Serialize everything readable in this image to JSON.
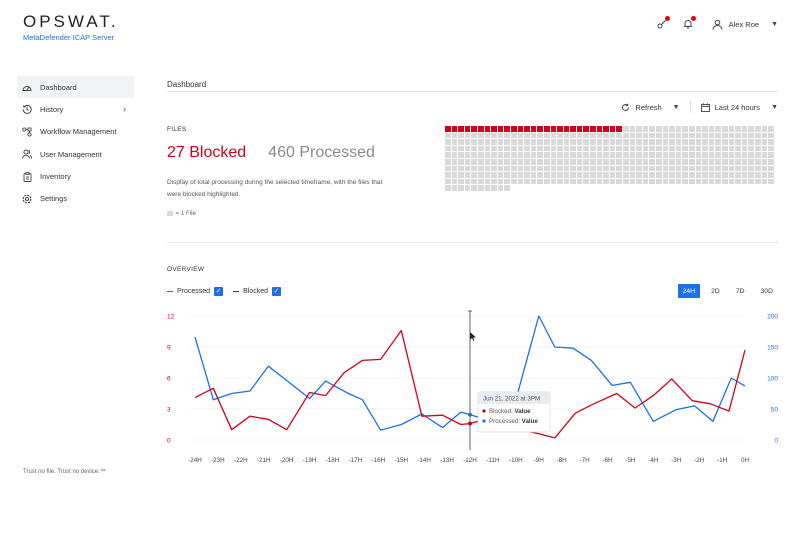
{
  "brand": {
    "logo": "OPSWAT.",
    "product": "MetaDefender ICAP Server"
  },
  "topbar": {
    "user_name": "Alex Roe",
    "icons": [
      "key-icon",
      "bell-icon",
      "user-icon"
    ]
  },
  "sidebar": {
    "items": [
      {
        "label": "Dashboard",
        "icon": "gauge-icon",
        "active": true
      },
      {
        "label": "History",
        "icon": "history-icon",
        "has_children": true
      },
      {
        "label": "Workflow Management",
        "icon": "workflow-icon"
      },
      {
        "label": "User Management",
        "icon": "users-icon"
      },
      {
        "label": "Inventory",
        "icon": "clipboard-icon"
      },
      {
        "label": "Settings",
        "icon": "gear-icon"
      }
    ],
    "footer": "Trust no file. Trust no device.™"
  },
  "page": {
    "title": "Dashboard"
  },
  "toolbar": {
    "refresh_label": "Refresh",
    "timeframe_label": "Last 24 hours"
  },
  "files": {
    "section_label": "FILES",
    "blocked_text": "27 Blocked",
    "processed_text": "460 Processed",
    "blocked_count": 27,
    "processed_count": 460,
    "description": "Display of total processing during the selected timeframe, with the files that were blocked highlighted.",
    "legend": "= 1 File",
    "colors": {
      "blocked": "#d0021b",
      "processed": "#d9d9d9"
    }
  },
  "overview": {
    "section_label": "OVERVIEW",
    "legend": [
      {
        "label": "Processed",
        "color": "#1d6fe8",
        "checked": true
      },
      {
        "label": "Blocked",
        "color": "#d0021b",
        "checked": true
      }
    ],
    "ranges": [
      {
        "label": "24H",
        "active": true
      },
      {
        "label": "2D",
        "active": false
      },
      {
        "label": "7D",
        "active": false
      },
      {
        "label": "30D",
        "active": false
      }
    ],
    "tooltip": {
      "title": "Jun 21, 2022 at 3PM",
      "rows": [
        {
          "label": "Blocked:",
          "value": "Value",
          "color": "#d0021b"
        },
        {
          "label": "Processed:",
          "value": "Value",
          "color": "#1d6fe8"
        }
      ]
    }
  },
  "chart_data": {
    "type": "line",
    "title": "",
    "xlabel": "",
    "ylabel_left": "Blocked",
    "ylabel_right": "Processed",
    "categories": [
      "-24H",
      "-23H",
      "-22H",
      "-21H",
      "-20H",
      "-19H",
      "-18H",
      "-17H",
      "-16H",
      "-15H",
      "-14H",
      "-13H",
      "-12H",
      "-11H",
      "-10H",
      "-9H",
      "-8H",
      "-7H",
      "-6H",
      "-5H",
      "-4H",
      "-3H",
      "-2H",
      "-1H",
      "0H"
    ],
    "y_left_ticks": [
      0,
      3,
      6,
      9,
      12
    ],
    "y_right_ticks": [
      0,
      50,
      100,
      150,
      200
    ],
    "ylim_left": [
      0,
      12
    ],
    "ylim_right": [
      0,
      200
    ],
    "grid": true,
    "series": [
      {
        "name": "Processed",
        "axis": "right",
        "color": "#1d6fe8",
        "points": [
          [
            -24,
            166
          ],
          [
            -23.2,
            65
          ],
          [
            -22.4,
            75
          ],
          [
            -21.6,
            79
          ],
          [
            -20.8,
            119
          ],
          [
            -20,
            96
          ],
          [
            -19,
            67
          ],
          [
            -18.3,
            95
          ],
          [
            -17.3,
            75
          ],
          [
            -16.7,
            65
          ],
          [
            -15.9,
            16
          ],
          [
            -15,
            25
          ],
          [
            -14.1,
            42
          ],
          [
            -13.2,
            20
          ],
          [
            -12.4,
            45
          ],
          [
            -12,
            41
          ],
          [
            -11.5,
            35
          ],
          [
            -10.6,
            38
          ],
          [
            -9.9,
            78
          ],
          [
            -9,
            200
          ],
          [
            -8.3,
            150
          ],
          [
            -7.5,
            148
          ],
          [
            -6.7,
            128
          ],
          [
            -5.8,
            88
          ],
          [
            -5,
            93
          ],
          [
            -4,
            30
          ],
          [
            -3,
            49
          ],
          [
            -2.2,
            55
          ],
          [
            -1.4,
            30
          ],
          [
            -0.6,
            100
          ],
          [
            0,
            87
          ]
        ]
      },
      {
        "name": "Blocked",
        "axis": "left",
        "color": "#d0021b",
        "points": [
          [
            -24,
            4.1
          ],
          [
            -23.2,
            5
          ],
          [
            -22.4,
            1
          ],
          [
            -21.6,
            2.3
          ],
          [
            -20.8,
            2
          ],
          [
            -20,
            1
          ],
          [
            -19,
            4.6
          ],
          [
            -18.3,
            4.3
          ],
          [
            -17.5,
            6.5
          ],
          [
            -16.7,
            7.7
          ],
          [
            -15.9,
            7.8
          ],
          [
            -15,
            10.6
          ],
          [
            -14.1,
            2.3
          ],
          [
            -13.2,
            2.4
          ],
          [
            -12.4,
            1.5
          ],
          [
            -12,
            1.6
          ],
          [
            -11.5,
            1.9
          ],
          [
            -10.6,
            2
          ],
          [
            -10,
            1.1
          ],
          [
            -9,
            0.6
          ],
          [
            -8.3,
            0.2
          ],
          [
            -7.4,
            2.6
          ],
          [
            -6.6,
            3.5
          ],
          [
            -5.6,
            4.5
          ],
          [
            -4.8,
            3.1
          ],
          [
            -4,
            4.3
          ],
          [
            -3.2,
            5.9
          ],
          [
            -2.3,
            3.8
          ],
          [
            -1.5,
            3.5
          ],
          [
            -0.7,
            2.8
          ],
          [
            0,
            8.7
          ]
        ]
      }
    ],
    "cursor_x": "-12H"
  }
}
